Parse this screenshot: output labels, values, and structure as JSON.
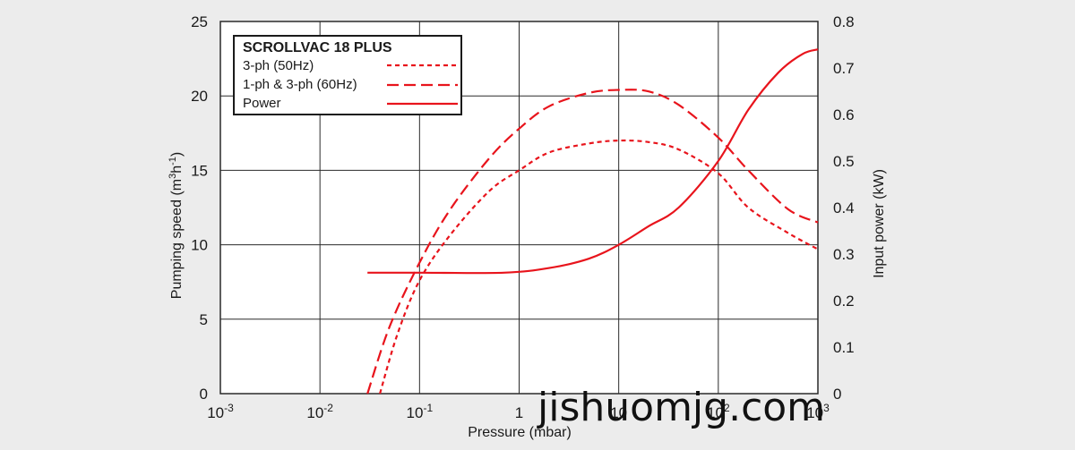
{
  "colors": {
    "background": "#ececec",
    "plot_background": "#ffffff",
    "series_red": "#e8141c",
    "grid": "#2a2a2a"
  },
  "watermark": "jishuomjg.com",
  "chart_data": {
    "type": "line",
    "title": "",
    "legend": {
      "title": "SCROLLVAC 18 PLUS",
      "position": "top-left"
    },
    "grid": true,
    "x_axis": {
      "label": "Pressure (mbar)",
      "scale": "log",
      "range": [
        0.001,
        1000
      ],
      "ticks": [
        {
          "value": 0.001,
          "base": "10",
          "exp": "-3"
        },
        {
          "value": 0.01,
          "base": "10",
          "exp": "-2"
        },
        {
          "value": 0.1,
          "base": "10",
          "exp": "-1"
        },
        {
          "value": 1,
          "base": "1",
          "exp": ""
        },
        {
          "value": 10,
          "base": "10",
          "exp": ""
        },
        {
          "value": 100,
          "base": "10",
          "exp": "2"
        },
        {
          "value": 1000,
          "base": "10",
          "exp": "3"
        }
      ]
    },
    "y_axis_left": {
      "label_parts": [
        "Pumping speed (m",
        "3",
        "h",
        "-1",
        ")"
      ],
      "range": [
        0,
        25
      ],
      "ticks": [
        "0",
        "5",
        "10",
        "15",
        "20",
        "25"
      ]
    },
    "y_axis_right": {
      "label": "Input power (kW)",
      "range": [
        0,
        0.8
      ],
      "ticks": [
        "0",
        "0.1",
        "0.2",
        "0.3",
        "0.4",
        "0.5",
        "0.6",
        "0.7",
        "0.8"
      ]
    },
    "series": [
      {
        "name": "3-ph (50Hz)",
        "axis": "left",
        "dash": "dotted",
        "points": [
          [
            0.04,
            0
          ],
          [
            0.06,
            4
          ],
          [
            0.1,
            7.6
          ],
          [
            0.2,
            10.6
          ],
          [
            0.5,
            13.6
          ],
          [
            1,
            15.0
          ],
          [
            2,
            16.2
          ],
          [
            5,
            16.8
          ],
          [
            10,
            17.0
          ],
          [
            20,
            16.9
          ],
          [
            40,
            16.4
          ],
          [
            100,
            14.8
          ],
          [
            200,
            12.5
          ],
          [
            500,
            10.8
          ],
          [
            1000,
            9.7
          ]
        ]
      },
      {
        "name": "1-ph & 3-ph (60Hz)",
        "axis": "left",
        "dash": "dashed",
        "points": [
          [
            0.03,
            0
          ],
          [
            0.05,
            4.5
          ],
          [
            0.1,
            8.8
          ],
          [
            0.2,
            12.3
          ],
          [
            0.5,
            15.8
          ],
          [
            1,
            17.8
          ],
          [
            2,
            19.3
          ],
          [
            5,
            20.2
          ],
          [
            10,
            20.4
          ],
          [
            20,
            20.3
          ],
          [
            40,
            19.4
          ],
          [
            100,
            17.2
          ],
          [
            200,
            15.0
          ],
          [
            500,
            12.4
          ],
          [
            1000,
            11.5
          ]
        ]
      },
      {
        "name": "Power",
        "axis": "right",
        "dash": "solid",
        "points": [
          [
            0.03,
            0.26
          ],
          [
            0.1,
            0.26
          ],
          [
            0.7,
            0.26
          ],
          [
            2,
            0.27
          ],
          [
            5,
            0.29
          ],
          [
            10,
            0.32
          ],
          [
            20,
            0.36
          ],
          [
            40,
            0.4
          ],
          [
            100,
            0.5
          ],
          [
            200,
            0.61
          ],
          [
            400,
            0.69
          ],
          [
            700,
            0.73
          ],
          [
            1000,
            0.74
          ]
        ]
      }
    ]
  }
}
